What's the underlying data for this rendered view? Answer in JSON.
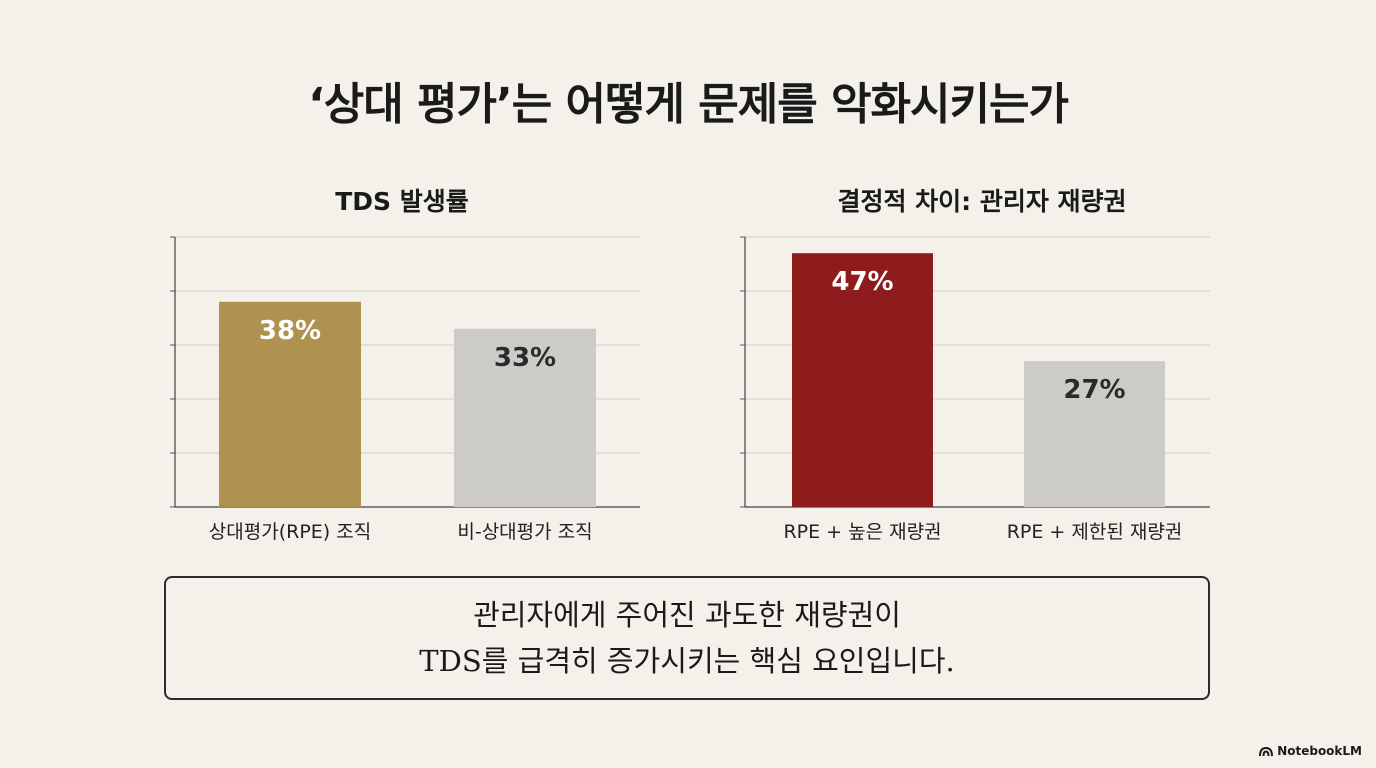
{
  "title": "‘상대 평가’는 어떻게 문제를 악화시키는가",
  "chart_data": [
    {
      "type": "bar",
      "title": "TDS 발생률",
      "categories": [
        "상대평가(RPE) 조직",
        "비-상대평가 조직"
      ],
      "values": [
        38,
        33
      ],
      "value_labels": [
        "38%",
        "33%"
      ],
      "ylim": [
        0,
        50
      ],
      "grid": true,
      "colors": [
        "#b09250",
        "#cccbc8"
      ],
      "label_colors": [
        "#ffffff",
        "#2a2a2a"
      ]
    },
    {
      "type": "bar",
      "title": "결정적 차이: 관리자 재량권",
      "categories": [
        "RPE + 높은 재량권",
        "RPE + 제한된 재량권"
      ],
      "values": [
        47,
        27
      ],
      "value_labels": [
        "47%",
        "27%"
      ],
      "ylim": [
        0,
        50
      ],
      "grid": true,
      "colors": [
        "#8f1c1c",
        "#cccbc8"
      ],
      "label_colors": [
        "#ffffff",
        "#2a2a2a"
      ]
    }
  ],
  "callout": {
    "line1": "관리자에게 주어진 과도한 재량권이",
    "line2": "TDS를 급격히 증가시키는 핵심 요인입니다."
  },
  "branding": {
    "label": "NotebookLM",
    "icon": "notebooklm-logo-icon"
  }
}
